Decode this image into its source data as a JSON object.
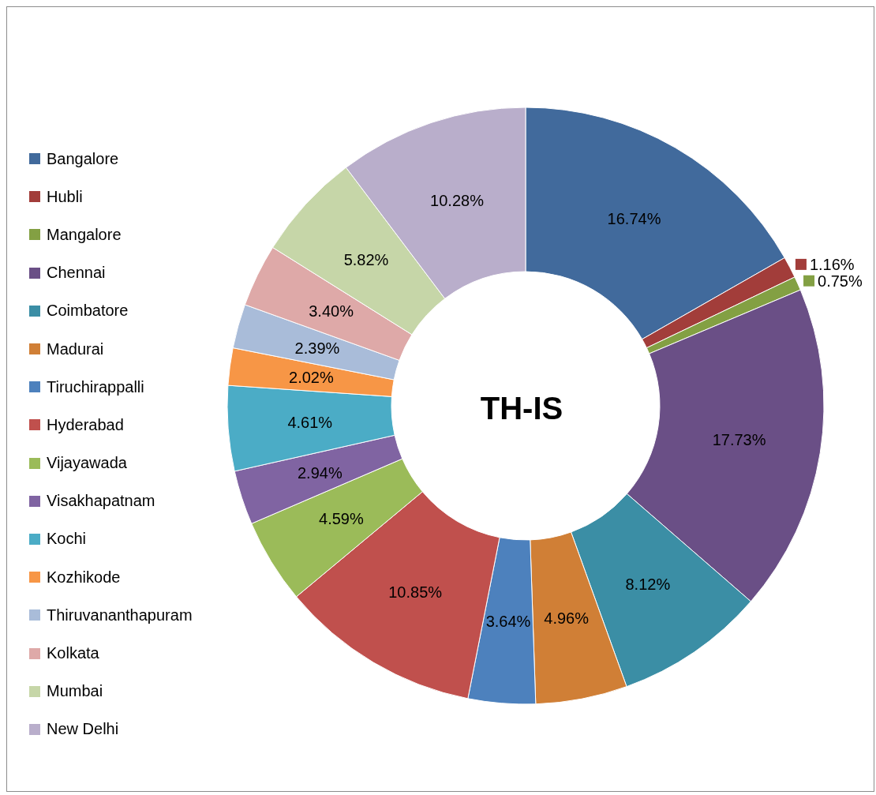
{
  "chart_data": {
    "type": "donut",
    "title": "TH-IS",
    "categories": [
      "Bangalore",
      "Hubli",
      "Mangalore",
      "Chennai",
      "Coimbatore",
      "Madurai",
      "Tiruchirappalli",
      "Hyderabad",
      "Vijayawada",
      "Visakhapatnam",
      "Kochi",
      "Kozhikode",
      "Thiruvananthapuram",
      "Kolkata",
      "Mumbai",
      "New Delhi"
    ],
    "values": [
      16.74,
      1.16,
      0.75,
      17.73,
      8.12,
      4.96,
      3.64,
      10.85,
      4.59,
      2.94,
      4.61,
      2.02,
      2.39,
      3.4,
      5.82,
      10.28
    ],
    "value_labels": [
      "16.74%",
      "1.16%",
      "0.75%",
      "17.73%",
      "8.12%",
      "4.96%",
      "3.64%",
      "10.85%",
      "4.59%",
      "2.94%",
      "4.61%",
      "2.02%",
      "2.39%",
      "3.40%",
      "5.82%",
      "10.28%"
    ],
    "colors": [
      "#416a9c",
      "#a23d3a",
      "#83a043",
      "#6a4f86",
      "#3b8ea5",
      "#d07f36",
      "#4d81bd",
      "#c0504d",
      "#9bbb59",
      "#8064a2",
      "#4bacc6",
      "#f79646",
      "#a9bcd9",
      "#dea9a8",
      "#c6d6a8",
      "#b9aecb"
    ],
    "legend": "left"
  }
}
